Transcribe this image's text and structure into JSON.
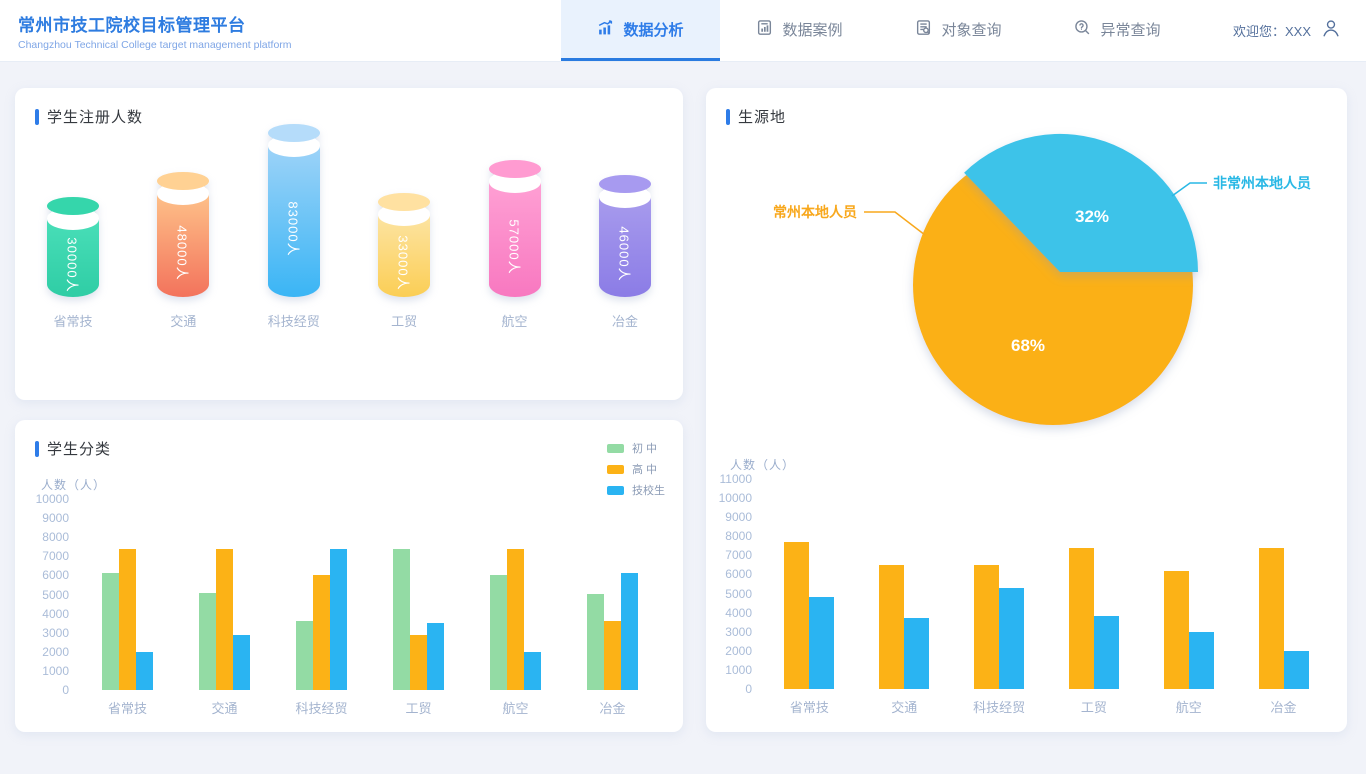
{
  "header": {
    "title": "常州市技工院校目标管理平台",
    "subtitle": "Changzhou Technical College target management platform",
    "tabs": [
      {
        "label": "数据分析",
        "icon": "bar-chart-rising-icon",
        "active": true
      },
      {
        "label": "数据案例",
        "icon": "document-chart-icon",
        "active": false
      },
      {
        "label": "对象查询",
        "icon": "document-search-icon",
        "active": false
      },
      {
        "label": "异常查询",
        "icon": "magnifier-question-icon",
        "active": false
      }
    ],
    "welcome": "欢迎您：XXX",
    "user_icon": "person-icon",
    "accent_color": "#2e7ce8"
  },
  "cards": {
    "registration": {
      "title": "学生注册人数",
      "chart_data": {
        "type": "bar",
        "style": "cylinder",
        "categories": [
          "省常技",
          "交通",
          "科技经贸",
          "工贸",
          "航空",
          "冶金"
        ],
        "values": [
          30000,
          48000,
          83000,
          33000,
          57000,
          46000
        ],
        "value_labels": [
          "30000人",
          "48000人",
          "83000人",
          "33000人",
          "57000人",
          "46000人"
        ],
        "bar_colors": [
          {
            "cap": "#35d6ab",
            "top": "#4de1bb",
            "bottom": "#2fcda5"
          },
          {
            "cap": "#ffd193",
            "top": "#ffca8e",
            "bottom": "#f3735c"
          },
          {
            "cap": "#b5dcfa",
            "top": "#a5d5f8",
            "bottom": "#3ab5f5"
          },
          {
            "cap": "#ffe1a1",
            "top": "#fde7ae",
            "bottom": "#fbce55"
          },
          {
            "cap": "#ff9bd1",
            "top": "#ffa4d6",
            "bottom": "#f878c0"
          },
          {
            "cap": "#a79af0",
            "top": "#ab9fee",
            "bottom": "#8b7ce6"
          }
        ]
      }
    },
    "classification": {
      "title": "学生分类",
      "chart_data": {
        "type": "bar",
        "ylabel": "人数（人）",
        "ylim": [
          0,
          10000
        ],
        "yticks": [
          0,
          1000,
          2000,
          3000,
          4000,
          5000,
          6000,
          7000,
          8000,
          9000,
          10000
        ],
        "grid": false,
        "legend_position": "top-right",
        "categories": [
          "省常技",
          "交通",
          "科技经贸",
          "工贸",
          "航空",
          "冶金"
        ],
        "series": [
          {
            "name": "初 中",
            "color": "#93dba4",
            "values": [
              6100,
              5100,
              3600,
              7400,
              6000,
              5000
            ]
          },
          {
            "name": "高 中",
            "color": "#fcb216",
            "values": [
              7400,
              7400,
              6000,
              2900,
              7400,
              3600
            ]
          },
          {
            "name": "技校生",
            "color": "#2ab4f2",
            "values": [
              2000,
              2900,
              7400,
              3500,
              2000,
              6100
            ]
          }
        ]
      }
    },
    "origin": {
      "title": "生源地",
      "pie_data": {
        "type": "pie",
        "slices": [
          {
            "label": "常州本地人员",
            "pct_label": "68%",
            "value": 68,
            "color": "#fbb017",
            "label_color": "#f8a81d"
          },
          {
            "label": "非常州本地人员",
            "pct_label": "32%",
            "value": 32,
            "color": "#3ec3e9",
            "label_color": "#29b8e5"
          }
        ]
      },
      "chart_data": {
        "type": "bar",
        "ylabel": "人数（人）",
        "ylim": [
          0,
          11000
        ],
        "yticks": [
          0,
          1000,
          2000,
          3000,
          4000,
          5000,
          6000,
          7000,
          8000,
          9000,
          10000,
          11000
        ],
        "grid": false,
        "categories": [
          "省常技",
          "交通",
          "科技经贸",
          "工贸",
          "航空",
          "冶金"
        ],
        "series": [
          {
            "color": "#fcb216",
            "values": [
              7700,
              6500,
              6500,
              7400,
              6200,
              7400
            ]
          },
          {
            "color": "#2ab4f2",
            "values": [
              4800,
              3700,
              5300,
              3800,
              3000,
              2000
            ]
          }
        ]
      }
    }
  }
}
